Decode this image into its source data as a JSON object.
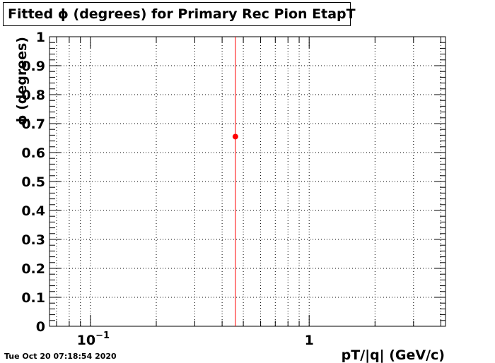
{
  "timestamp": "Tue Oct 20 07:18:54 2020",
  "chart_data": {
    "type": "scatter",
    "title": "Fitted ϕ (degrees) for Primary Rec Pion EtapT",
    "xlabel": "pT/|q| (GeV/c)",
    "ylabel": "ϕ (degrees)",
    "x_scale": "log",
    "xlim": [
      0.065,
      4.2
    ],
    "ylim": [
      0,
      1
    ],
    "y_ticks": [
      "0",
      "0.1",
      "0.2",
      "0.3",
      "0.4",
      "0.5",
      "0.6",
      "0.7",
      "0.8",
      "0.9",
      "1"
    ],
    "x_tick_labels": [
      {
        "value": 0.1,
        "mantissa": "10",
        "exponent": "−1"
      },
      {
        "value": 1,
        "mantissa": "1",
        "exponent": ""
      }
    ],
    "grid": true,
    "marker_color": "#ff0000",
    "points": [
      {
        "x": 0.46,
        "y": 0.655,
        "y_err_low": 0.655,
        "y_err_high": 0.345
      }
    ]
  }
}
